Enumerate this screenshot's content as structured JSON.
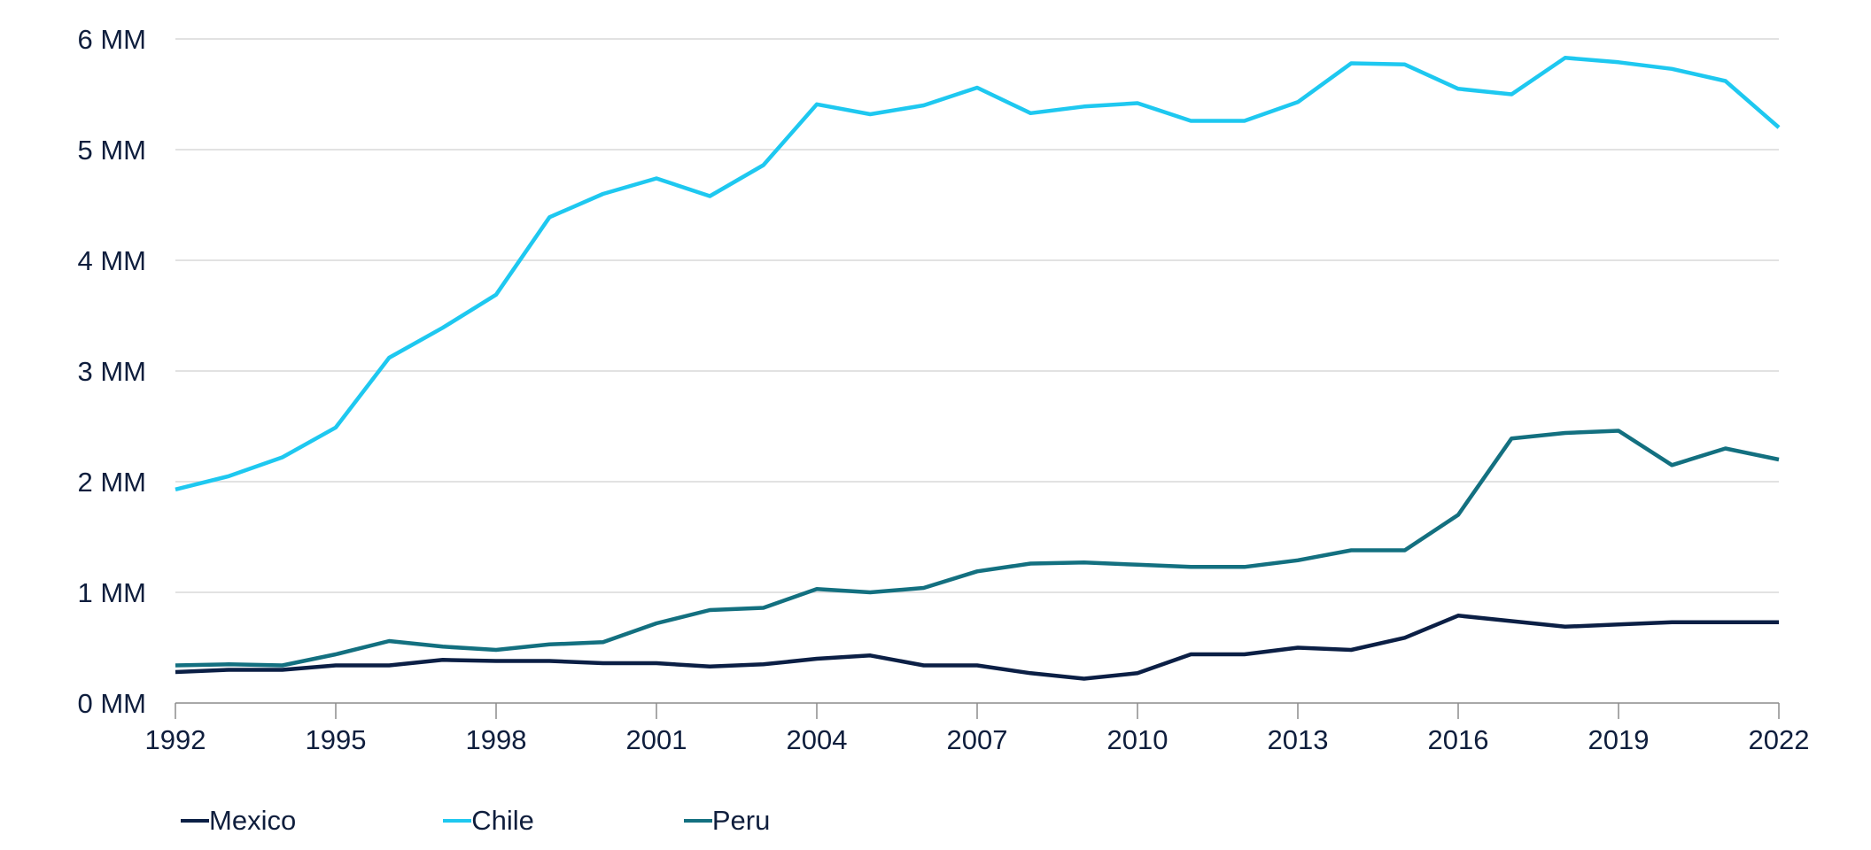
{
  "chart_data": {
    "type": "line",
    "x": [
      1992,
      1993,
      1994,
      1995,
      1996,
      1997,
      1998,
      1999,
      2000,
      2001,
      2002,
      2003,
      2004,
      2005,
      2006,
      2007,
      2008,
      2009,
      2010,
      2011,
      2012,
      2013,
      2014,
      2015,
      2016,
      2017,
      2018,
      2019,
      2020,
      2021,
      2022
    ],
    "xticks": [
      1992,
      1995,
      1998,
      2001,
      2004,
      2007,
      2010,
      2013,
      2016,
      2019,
      2022
    ],
    "xlim": [
      1992,
      2022
    ],
    "ylim": [
      0,
      6
    ],
    "yticks": [
      0,
      1,
      2,
      3,
      4,
      5,
      6
    ],
    "ytick_suffix": " MM",
    "grid": "horizontal",
    "legend_position": "bottom-left",
    "series": [
      {
        "name": "Mexico",
        "color": "#0b1f45",
        "values": [
          0.28,
          0.3,
          0.3,
          0.34,
          0.34,
          0.39,
          0.38,
          0.38,
          0.36,
          0.36,
          0.33,
          0.35,
          0.4,
          0.43,
          0.34,
          0.34,
          0.27,
          0.22,
          0.27,
          0.44,
          0.44,
          0.5,
          0.48,
          0.59,
          0.79,
          0.74,
          0.69,
          0.71,
          0.73,
          0.73,
          0.73
        ]
      },
      {
        "name": "Chile",
        "color": "#1ec8f0",
        "values": [
          1.93,
          2.05,
          2.22,
          2.49,
          3.12,
          3.39,
          3.69,
          4.39,
          4.6,
          4.74,
          4.58,
          4.86,
          5.41,
          5.32,
          5.4,
          5.56,
          5.33,
          5.39,
          5.42,
          5.26,
          5.26,
          5.43,
          5.78,
          5.77,
          5.55,
          5.5,
          5.83,
          5.79,
          5.73,
          5.62,
          5.2
        ]
      },
      {
        "name": "Peru",
        "color": "#137080",
        "values": [
          0.34,
          0.35,
          0.34,
          0.44,
          0.56,
          0.51,
          0.48,
          0.53,
          0.55,
          0.72,
          0.84,
          0.86,
          1.03,
          1.0,
          1.04,
          1.19,
          1.26,
          1.27,
          1.25,
          1.23,
          1.23,
          1.29,
          1.38,
          1.38,
          1.7,
          2.39,
          2.44,
          2.46,
          2.15,
          2.3,
          2.2
        ]
      }
    ]
  }
}
